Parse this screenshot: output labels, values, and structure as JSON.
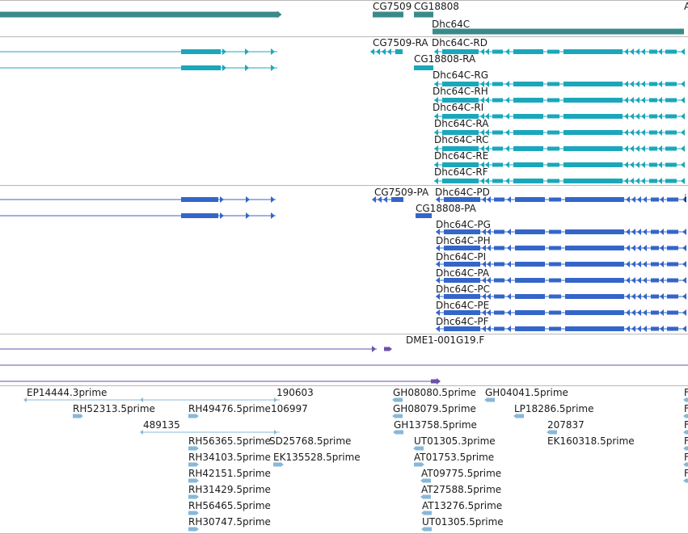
{
  "colors": {
    "gene": "#3a8a8a",
    "cdna": "#1ba7bb",
    "protein": "#3466c9",
    "alignment": "#6a52a8",
    "est": "#88b8d8",
    "divider": "#b8b8b8"
  },
  "gene_track": {
    "labels": [
      "CG7509",
      "CG18808",
      "Dhc64C",
      "A"
    ]
  },
  "transcript_track": {
    "labels": [
      "CG7509-RA",
      "Dhc64C-RD",
      "CG18808-RA",
      "Dhc64C-RG",
      "Dhc64C-RH",
      "Dhc64C-RI",
      "Dhc64C-RA",
      "Dhc64C-RC",
      "Dhc64C-RE",
      "Dhc64C-RF"
    ]
  },
  "protein_track": {
    "labels": [
      "CG7509-PA",
      "Dhc64C-PD",
      "CG18808-PA",
      "Dhc64C-PG",
      "Dhc64C-PH",
      "Dhc64C-PI",
      "Dhc64C-PA",
      "Dhc64C-PC",
      "Dhc64C-PE",
      "Dhc64C-PF"
    ],
    "edge_glyph": "i"
  },
  "alignment_track": {
    "labels": [
      "DME1-001G19.F"
    ]
  },
  "est_track": {
    "labels": [
      "EP14444.3prime",
      "190603",
      "GH08080.5prime",
      "GH04041.5prime",
      "F",
      "RH52313.5prime",
      "RH49476.5prime",
      "106997",
      "GH08079.5prime",
      "LP18286.5prime",
      "F",
      "489135",
      "GH13758.5prime",
      "207837",
      "F",
      "RH56365.5prime",
      "SD25768.5prime",
      "UT01305.3prime",
      "EK160318.5prime",
      "F",
      "RH34103.5prime",
      "EK135528.5prime",
      "AT01753.5prime",
      "F",
      "RH42151.5prime",
      "AT09775.5prime",
      "F",
      "RH31429.5prime",
      "AT27588.5prime",
      "RH56465.5prime",
      "AT13276.5prime",
      "RH30747.5prime",
      "UT01305.5prime"
    ]
  }
}
